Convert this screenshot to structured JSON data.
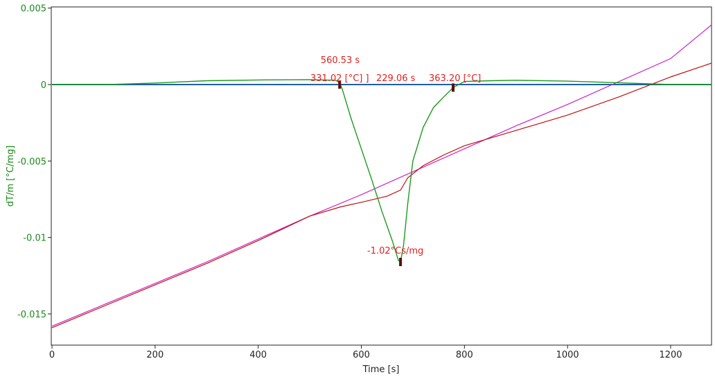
{
  "chart_data": {
    "type": "line",
    "title": "",
    "xlabel": "Time [s]",
    "ylabel": "dT/m  [°C/mg]",
    "xlim": [
      0,
      1280
    ],
    "ylim": [
      -0.017,
      0.005
    ],
    "x_ticks": [
      0,
      200,
      400,
      600,
      800,
      1000,
      1200
    ],
    "x_tick_labels": [
      "0",
      "200",
      "400",
      "600",
      "800",
      "1000",
      "1200"
    ],
    "y_ticks": [
      0.005,
      0,
      -0.005,
      -0.01,
      -0.015
    ],
    "y_tick_labels": [
      "0.005",
      "0",
      "-0.005",
      "-0.01",
      "-0.015"
    ],
    "grid": false,
    "colors": {
      "dtm": "#1a9a1a",
      "baseline": "#1f5fa8",
      "sample_temp": "#c01010",
      "reference_temp": "#cc22cc",
      "annotation": "#e0201e",
      "axis_y": "#1a8a1a",
      "marker": "#5a1010"
    },
    "series": [
      {
        "key": "dtm",
        "x": [
          0,
          110,
          200,
          300,
          400,
          500,
          550,
          558,
          563,
          580,
          600,
          620,
          640,
          660,
          672,
          676,
          682,
          690,
          700,
          720,
          740,
          760,
          778,
          800,
          850,
          900,
          1000,
          1100,
          1200,
          1280
        ],
        "y": [
          0,
          0,
          0.0001,
          0.00025,
          0.0003,
          0.00032,
          0.00028,
          0.00012,
          -0.0003,
          -0.0022,
          -0.0042,
          -0.0062,
          -0.0083,
          -0.0102,
          -0.0115,
          -0.0116,
          -0.0105,
          -0.0078,
          -0.005,
          -0.0028,
          -0.0015,
          -0.0008,
          -0.0002,
          0.0002,
          0.00025,
          0.00028,
          0.00022,
          0.00012,
          0,
          0
        ]
      },
      {
        "key": "baseline",
        "x": [
          0,
          1280
        ],
        "y": [
          0,
          0
        ]
      },
      {
        "key": "sample_temp",
        "x": [
          0,
          50,
          100,
          200,
          300,
          400,
          500,
          560,
          600,
          650,
          676,
          690,
          720,
          760,
          800,
          900,
          1000,
          1100,
          1200,
          1280
        ],
        "y": [
          -0.0159,
          -0.0152,
          -0.0145,
          -0.0131,
          -0.0117,
          -0.0102,
          -0.0086,
          -0.008,
          -0.0077,
          -0.0073,
          -0.0069,
          -0.0061,
          -0.0053,
          -0.0046,
          -0.004,
          -0.003,
          -0.002,
          -0.0008,
          0.0005,
          0.0014
        ]
      },
      {
        "key": "reference_temp",
        "x": [
          0,
          100,
          200,
          300,
          400,
          500,
          600,
          700,
          800,
          900,
          1000,
          1100,
          1200,
          1280
        ],
        "y": [
          -0.0158,
          -0.0144,
          -0.013,
          -0.0116,
          -0.0101,
          -0.0086,
          -0.0072,
          -0.0057,
          -0.0042,
          -0.0027,
          -0.0013,
          0.0002,
          0.0017,
          0.0039
        ]
      }
    ],
    "markers": [
      {
        "x": 558,
        "y": 0
      },
      {
        "x": 676,
        "y": -0.0116
      },
      {
        "x": 778,
        "y": -0.0002
      }
    ],
    "annotations": [
      {
        "text": "560.53 s"
      },
      {
        "text": "331.02 [°C] ]"
      },
      {
        "text": "229.06 s"
      },
      {
        "text": "363.20 [°C]"
      },
      {
        "text": "-1.02°Cs/mg"
      }
    ]
  }
}
